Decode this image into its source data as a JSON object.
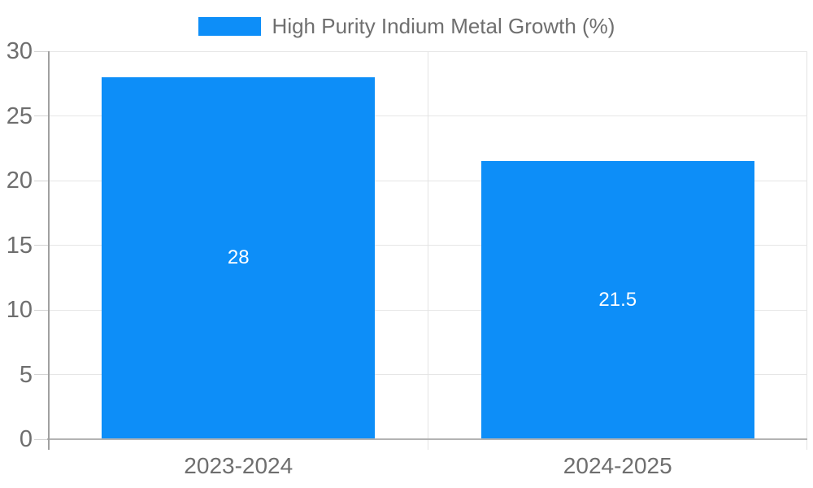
{
  "chart_data": {
    "type": "bar",
    "legend": {
      "label": "High Purity Indium Metal Growth (%)",
      "position": "top-center"
    },
    "categories": [
      "2023-2024",
      "2024-2025"
    ],
    "series": [
      {
        "name": "High Purity Indium Metal Growth (%)",
        "values": [
          28,
          21.5
        ],
        "data_labels": [
          "28",
          "21.5"
        ]
      }
    ],
    "ylim": [
      0,
      30
    ],
    "yticks": [
      0,
      5,
      10,
      15,
      20,
      25,
      30
    ],
    "ytick_labels": [
      "0",
      "5",
      "10",
      "15",
      "20",
      "25",
      "30"
    ],
    "grid": true,
    "bar_width_ratio": 0.72,
    "colors": {
      "bar": "#0d8ef8",
      "data_label": "#ffffff",
      "axis_text": "#6e6e6e",
      "legend_text": "#6f6f6f",
      "gridline": "#e6e6e6",
      "divider": "#e3e3e3",
      "tick_mark": "#d4d4d4",
      "axis_line": "#a0a0a0",
      "baseline": "#b3b3b3",
      "background": "#ffffff"
    }
  }
}
